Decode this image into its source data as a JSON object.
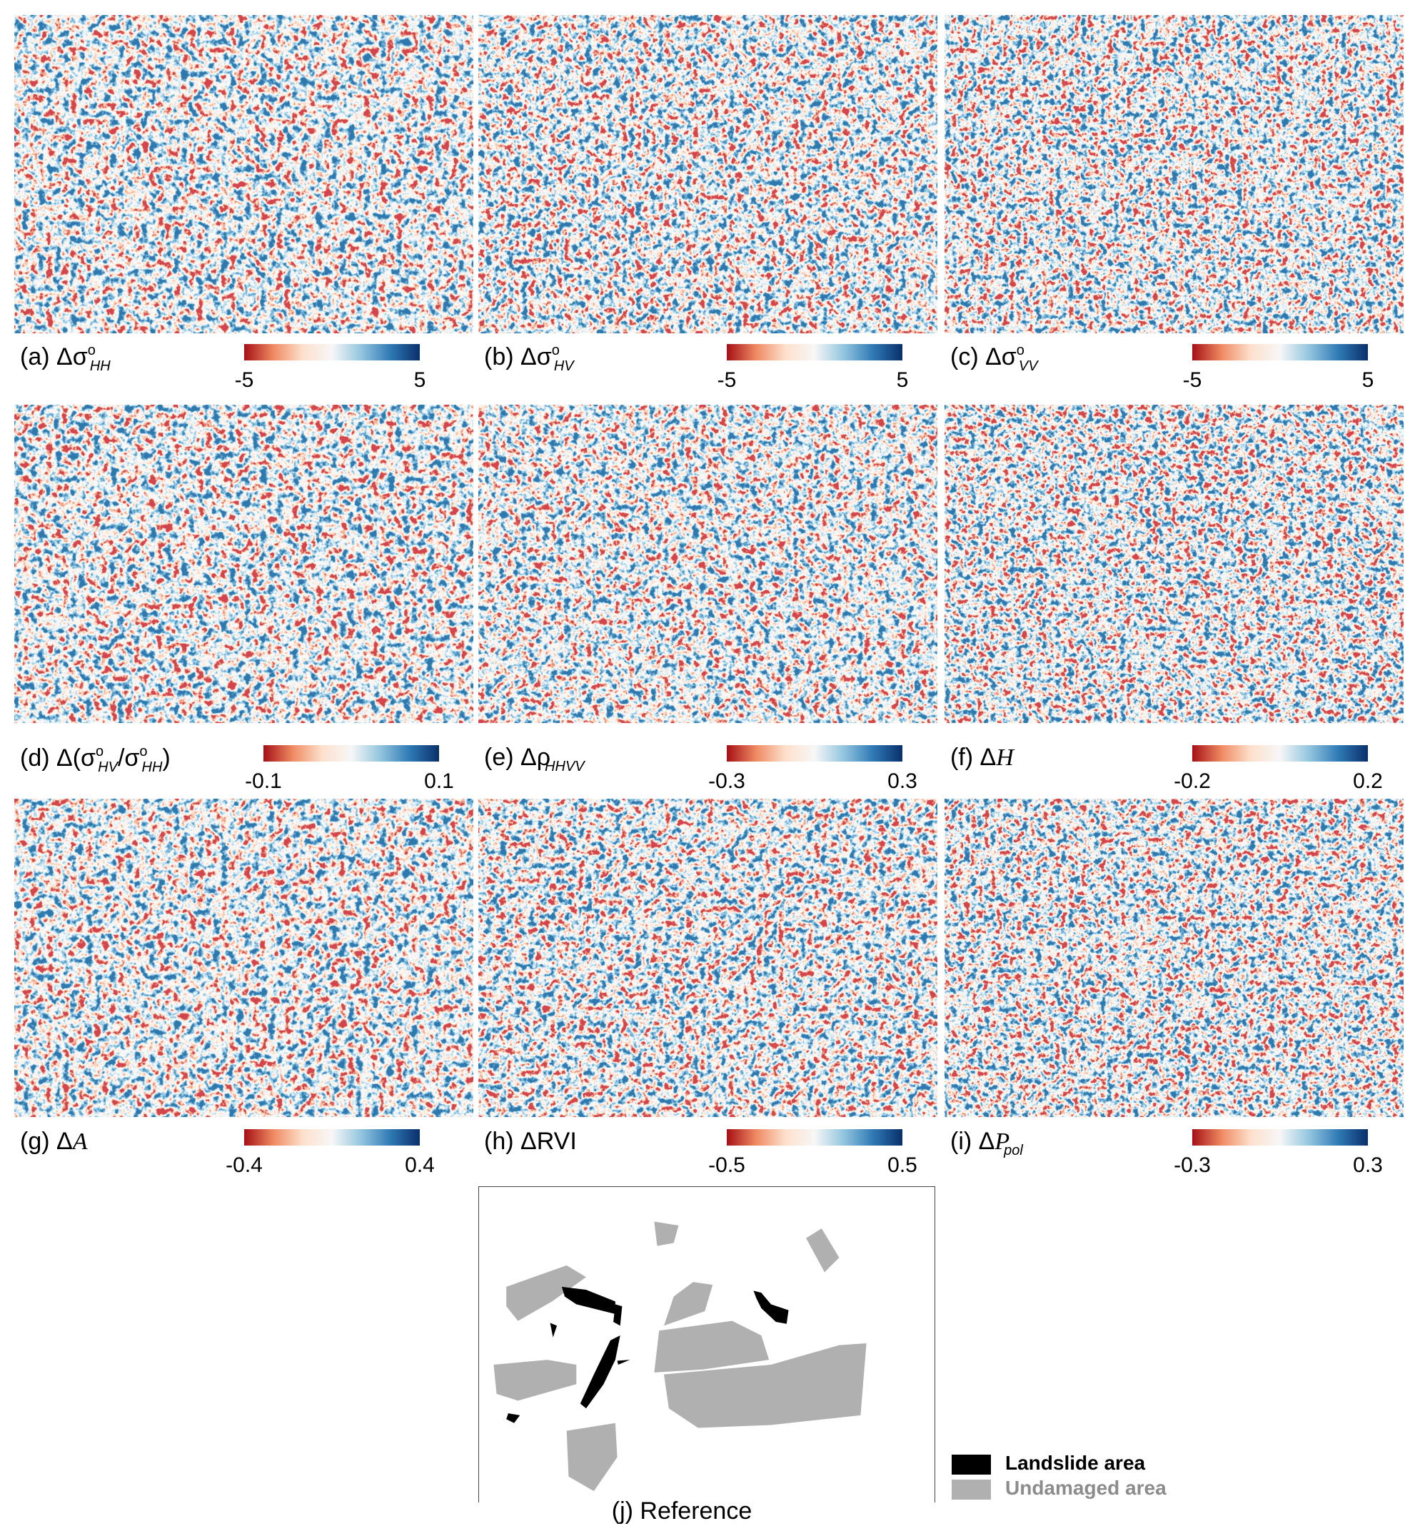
{
  "panels": [
    {
      "caption": [
        {
          "t": "(a) Δσ"
        },
        {
          "t": "o",
          "s": "sup"
        },
        {
          "t": "HH",
          "s": "sub"
        }
      ],
      "scale": {
        "min": "-5",
        "max": "5"
      }
    },
    {
      "caption": [
        {
          "t": "(b) Δσ"
        },
        {
          "t": "o",
          "s": "sup"
        },
        {
          "t": "HV",
          "s": "sub"
        }
      ],
      "scale": {
        "min": "-5",
        "max": "5"
      }
    },
    {
      "caption": [
        {
          "t": "(c) Δσ"
        },
        {
          "t": "o",
          "s": "sup"
        },
        {
          "t": "VV",
          "s": "sub"
        }
      ],
      "scale": {
        "min": "-5",
        "max": "5"
      }
    },
    {
      "caption": [
        {
          "t": "(d) Δ(σ"
        },
        {
          "t": "o",
          "s": "sup"
        },
        {
          "t": "HV",
          "s": "sub"
        },
        {
          "t": "/σ"
        },
        {
          "t": "o",
          "s": "sup"
        },
        {
          "t": "HH",
          "s": "sub"
        },
        {
          "t": ")"
        }
      ],
      "scale": {
        "min": "-0.1",
        "max": "0.1"
      }
    },
    {
      "caption": [
        {
          "t": "(e) Δρ"
        },
        {
          "t": "HHVV",
          "s": "sub"
        }
      ],
      "scale": {
        "min": "-0.3",
        "max": "0.3"
      }
    },
    {
      "caption": [
        {
          "t": "(f) Δ"
        },
        {
          "t": "H",
          "s": "it"
        }
      ],
      "scale": {
        "min": "-0.2",
        "max": "0.2"
      }
    },
    {
      "caption": [
        {
          "t": "(g) Δ"
        },
        {
          "t": "A",
          "s": "it"
        }
      ],
      "scale": {
        "min": "-0.4",
        "max": "0.4"
      }
    },
    {
      "caption": [
        {
          "t": "(h) ΔRVI"
        }
      ],
      "scale": {
        "min": "-0.5",
        "max": "0.5"
      }
    },
    {
      "caption": [
        {
          "t": "(i) Δ"
        },
        {
          "t": "P",
          "s": "it"
        },
        {
          "t": "pol",
          "s": "sub"
        }
      ],
      "scale": {
        "min": "-0.3",
        "max": "0.3"
      }
    }
  ],
  "reference": {
    "caption": "(j) Reference",
    "legend": [
      "Landslide area",
      "Undamaged area"
    ]
  }
}
